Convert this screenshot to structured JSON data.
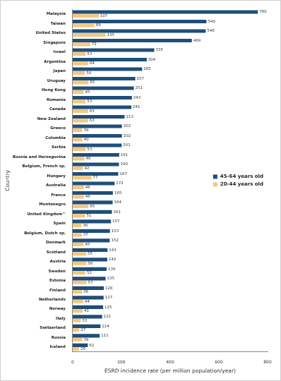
{
  "chart_data": {
    "type": "bar",
    "orientation": "horizontal",
    "x_label": "ESRD incidence rate (per million population/year)",
    "y_label": "Country",
    "categories": [
      "Malaysia",
      "Taiwan",
      "United States",
      "Singapore",
      "Israel",
      "Argentina",
      "Japan",
      "Uruguay",
      "Hong Kong",
      "Romania",
      "Canada",
      "New Zealand",
      "Greece",
      "Colombia",
      "Serbia",
      "Bosnia and Herzegovina",
      "Belgium, French sp.",
      "Hungary",
      "Australia",
      "France",
      "Montenegro",
      "United Kingdom^",
      "Spain",
      "Belgium, Dutch sp.",
      "Denmark",
      "Scotland",
      "Austria",
      "Sweden",
      "Estonia",
      "Finland",
      "Netherlands",
      "Norway",
      "Italy",
      "Switzerland",
      "Russia",
      "Iceland"
    ],
    "series": [
      {
        "name": "45-64 years old",
        "color": "#1f4e79",
        "values": [
          760,
          549,
          546,
          489,
          335,
          304,
          285,
          257,
          251,
          243,
          241,
          213,
          202,
          202,
          201,
          191,
          190,
          187,
          172,
          165,
          164,
          161,
          157,
          153,
          152,
          143,
          142,
          139,
          135,
          128,
          127,
          125,
          121,
          114,
          111,
          62
        ]
      },
      {
        "name": "20-44 years old",
        "color": "#f5c77e",
        "values": [
          107,
          89,
          135,
          72,
          53,
          64,
          50,
          65,
          45,
          53,
          63,
          63,
          39,
          40,
          53,
          48,
          42,
          77,
          46,
          46,
          65,
          51,
          36,
          37,
          45,
          55,
          56,
          52,
          57,
          38,
          44,
          41,
          33,
          27,
          39,
          26
        ]
      }
    ],
    "xlim": [
      0,
      800
    ],
    "xticks": [
      0,
      200,
      400,
      600,
      800
    ],
    "grid": false,
    "legend": "right",
    "data_labels": true
  }
}
